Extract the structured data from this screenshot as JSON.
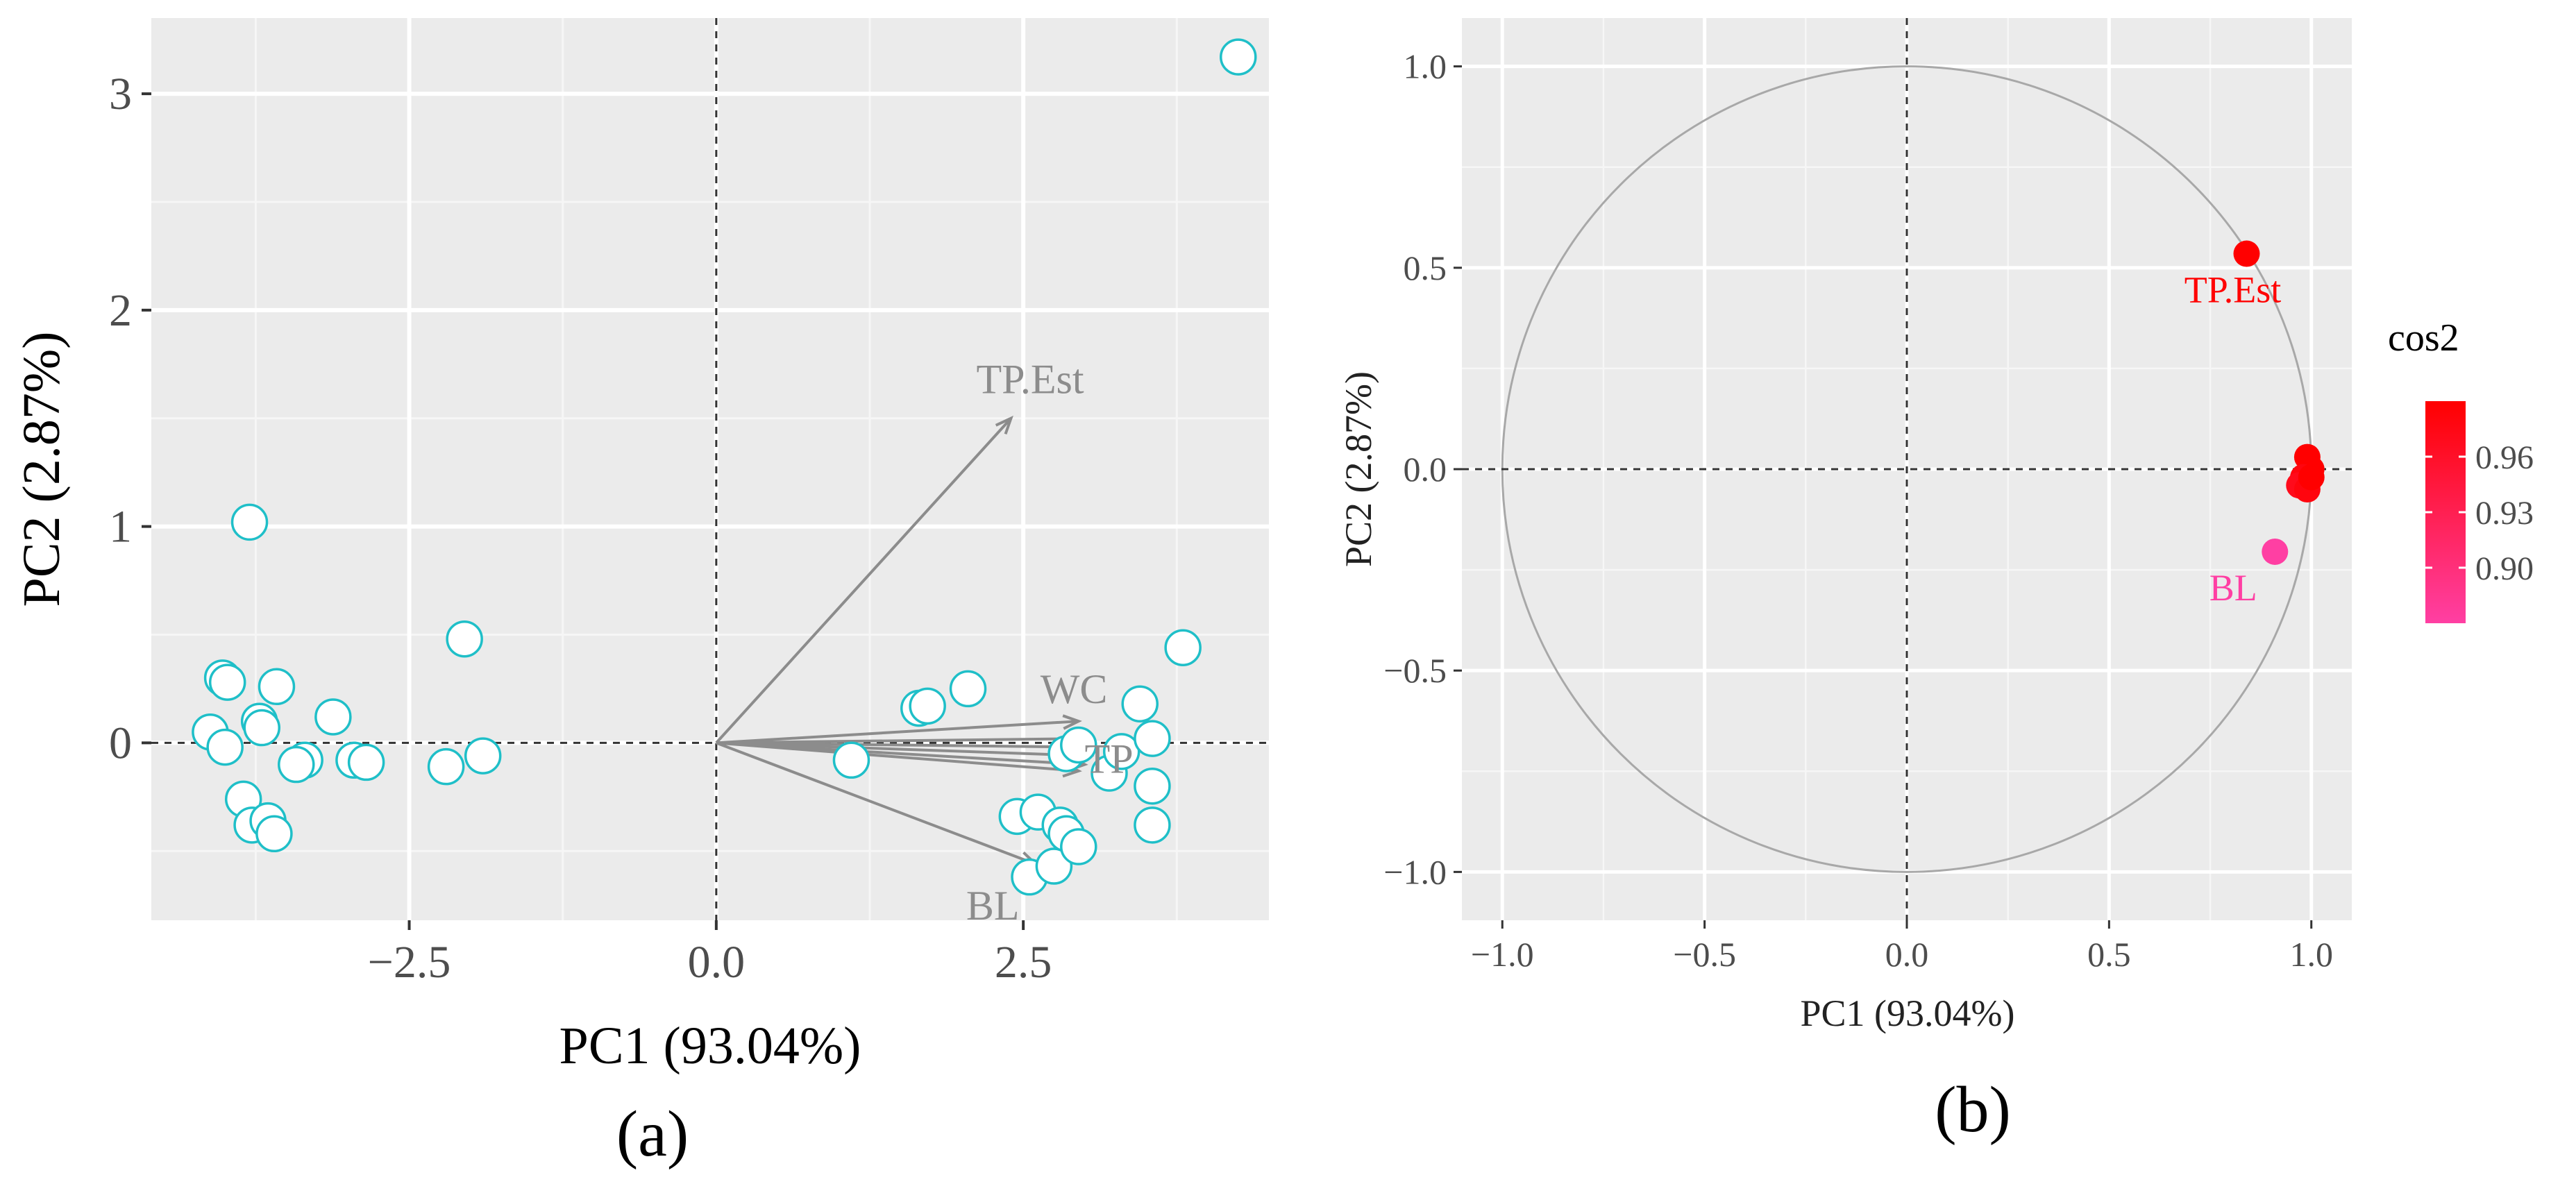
{
  "chart_data": [
    {
      "panel": "a",
      "type": "scatter",
      "caption": "(a)",
      "xlabel": "PC1 (93.04%)",
      "ylabel": "PC2 (2.87%)",
      "xlim": [
        -4.6,
        4.5
      ],
      "ylim": [
        -0.82,
        3.35
      ],
      "xticks": [
        -2.5,
        0.0,
        2.5
      ],
      "xtick_labels": [
        "−2.5",
        "0.0",
        "2.5"
      ],
      "yticks": [
        0,
        1,
        2,
        3
      ],
      "ytick_labels": [
        "0",
        "1",
        "2",
        "3"
      ],
      "grid": true,
      "points_color": "#1fbfc8",
      "points": [
        [
          -4.12,
          0.05
        ],
        [
          -4.0,
          -0.02
        ],
        [
          -4.02,
          0.3
        ],
        [
          -3.98,
          0.28
        ],
        [
          -3.72,
          0.1
        ],
        [
          -3.7,
          0.07
        ],
        [
          -3.58,
          0.26
        ],
        [
          -3.85,
          -0.26
        ],
        [
          -3.78,
          -0.38
        ],
        [
          -3.65,
          -0.36
        ],
        [
          -3.6,
          -0.42
        ],
        [
          -3.8,
          1.02
        ],
        [
          -3.35,
          -0.08
        ],
        [
          -3.42,
          -0.1
        ],
        [
          -3.12,
          0.12
        ],
        [
          -2.95,
          -0.08
        ],
        [
          -2.85,
          -0.09
        ],
        [
          -2.2,
          -0.11
        ],
        [
          -2.05,
          0.48
        ],
        [
          -1.9,
          -0.06
        ],
        [
          1.1,
          -0.08
        ],
        [
          1.65,
          0.16
        ],
        [
          1.72,
          0.17
        ],
        [
          2.05,
          0.25
        ],
        [
          2.45,
          -0.34
        ],
        [
          2.62,
          -0.32
        ],
        [
          2.55,
          -0.62
        ],
        [
          2.75,
          -0.57
        ],
        [
          2.8,
          -0.38
        ],
        [
          2.85,
          -0.42
        ],
        [
          2.95,
          -0.48
        ],
        [
          2.85,
          -0.05
        ],
        [
          2.95,
          -0.01
        ],
        [
          3.2,
          -0.14
        ],
        [
          3.3,
          -0.04
        ],
        [
          3.45,
          0.18
        ],
        [
          3.55,
          0.02
        ],
        [
          3.55,
          -0.2
        ],
        [
          3.55,
          -0.38
        ],
        [
          3.8,
          0.44
        ],
        [
          4.25,
          3.17
        ]
      ],
      "arrows_color": "#8c8c8c",
      "arrows": [
        {
          "label": "TP.Est",
          "x": 2.4,
          "y": 1.5
        },
        {
          "label": "WC",
          "x": 2.95,
          "y": 0.1
        },
        {
          "label": "",
          "x": 3.0,
          "y": 0.02
        },
        {
          "label": "",
          "x": 3.05,
          "y": -0.02
        },
        {
          "label": "",
          "x": 3.05,
          "y": -0.06
        },
        {
          "label": "TP",
          "x": 3.0,
          "y": -0.1
        },
        {
          "label": "",
          "x": 2.95,
          "y": -0.13
        },
        {
          "label": "BL",
          "x": 2.6,
          "y": -0.56
        }
      ]
    },
    {
      "panel": "b",
      "type": "scatter",
      "caption": "(b)",
      "xlabel": "PC1 (93.04%)",
      "ylabel": "PC2 (2.87%)",
      "xlim": [
        -1.1,
        1.1
      ],
      "ylim": [
        -1.12,
        1.12
      ],
      "xticks": [
        -1.0,
        -0.5,
        0.0,
        0.5,
        1.0
      ],
      "xtick_labels": [
        "−1.0",
        "−0.5",
        "0.0",
        "0.5",
        "1.0"
      ],
      "yticks": [
        -1.0,
        -0.5,
        0.0,
        0.5,
        1.0
      ],
      "ytick_labels": [
        "−1.0",
        "−0.5",
        "0.0",
        "0.5",
        "1.0"
      ],
      "grid": true,
      "unit_circle": true,
      "variables": [
        {
          "label": "TP.Est",
          "x": 0.84,
          "y": 0.535,
          "cos2": 0.99
        },
        {
          "label": "",
          "x": 0.99,
          "y": 0.03,
          "cos2": 0.99
        },
        {
          "label": "",
          "x": 1.0,
          "y": 0.0,
          "cos2": 0.99
        },
        {
          "label": "",
          "x": 0.98,
          "y": -0.02,
          "cos2": 0.98
        },
        {
          "label": "",
          "x": 0.97,
          "y": -0.04,
          "cos2": 0.97
        },
        {
          "label": "",
          "x": 0.99,
          "y": -0.05,
          "cos2": 0.98
        },
        {
          "label": "",
          "x": 1.0,
          "y": -0.02,
          "cos2": 0.99
        },
        {
          "label": "BL",
          "x": 0.91,
          "y": -0.205,
          "cos2": 0.87
        }
      ],
      "legend": {
        "title": "cos2",
        "position": "right",
        "ticks": [
          0.96,
          0.93,
          0.9
        ],
        "tick_labels": [
          "0.96",
          "0.93",
          "0.90"
        ],
        "range": [
          0.87,
          0.99
        ],
        "color_low": "#ff3fa3",
        "color_high": "#ff0000"
      }
    }
  ]
}
